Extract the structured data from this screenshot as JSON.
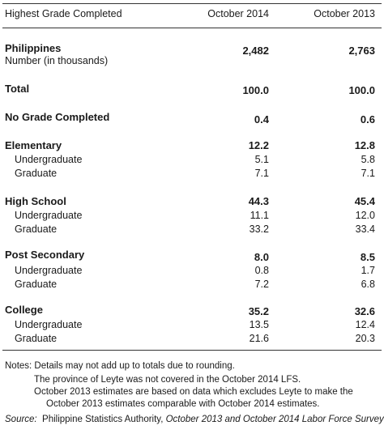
{
  "header": {
    "col_label": "Highest Grade Completed",
    "col_2014": "October 2014",
    "col_2013": "October 2013"
  },
  "philippines": {
    "label": "Philippines",
    "sublabel": "Number (in thousands)",
    "v2014": "2,482",
    "v2013": "2,763"
  },
  "total": {
    "label": "Total",
    "v2014": "100.0",
    "v2013": "100.0"
  },
  "no_grade": {
    "label": "No Grade Completed",
    "v2014": "0.4",
    "v2013": "0.6"
  },
  "elementary": {
    "label": "Elementary",
    "v2014": "12.2",
    "v2013": "12.8",
    "undergrad": {
      "label": "Undergraduate",
      "v2014": "5.1",
      "v2013": "5.8"
    },
    "grad": {
      "label": "Graduate",
      "v2014": "7.1",
      "v2013": "7.1"
    }
  },
  "high_school": {
    "label": "High School",
    "v2014": "44.3",
    "v2013": "45.4",
    "undergrad": {
      "label": "Undergraduate",
      "v2014": "11.1",
      "v2013": "12.0"
    },
    "grad": {
      "label": "Graduate",
      "v2014": "33.2",
      "v2013": "33.4"
    }
  },
  "post_secondary": {
    "label": "Post Secondary",
    "v2014": "8.0",
    "v2013": "8.5",
    "undergrad": {
      "label": "Undergraduate",
      "v2014": "0.8",
      "v2013": "1.7"
    },
    "grad": {
      "label": "Graduate",
      "v2014": "7.2",
      "v2013": "6.8"
    }
  },
  "college": {
    "label": "College",
    "v2014": "35.2",
    "v2013": "32.6",
    "undergrad": {
      "label": "Undergraduate",
      "v2014": "13.5",
      "v2013": "12.4"
    },
    "grad": {
      "label": "Graduate",
      "v2014": "21.6",
      "v2013": "20.3"
    }
  },
  "notes": {
    "line1": "Notes:  Details may not add up to totals due to rounding.",
    "line2": "The province of Leyte was not covered in the October 2014 LFS.",
    "line3": "October 2013 estimates are based on data which excludes Leyte to make the",
    "line4": "October 2013 estimates comparable with October 2014 estimates.",
    "source_label": "Source:",
    "source_org": "Philippine Statistics Authority,",
    "source_title": "October 2013 and October 2014 Labor Force Survey"
  }
}
